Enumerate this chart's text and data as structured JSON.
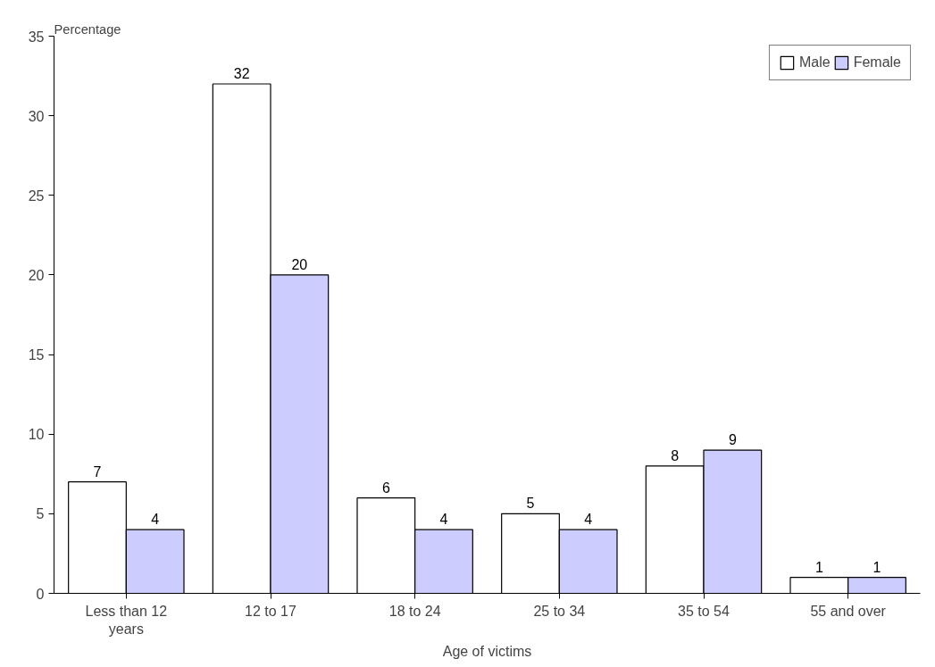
{
  "chart_data": {
    "type": "bar",
    "ylabel": "Percentage",
    "xlabel": "Age of victims",
    "categories": [
      "Less than 12\nyears",
      "12 to 17",
      "18 to 24",
      "25 to 34",
      "35 to 54",
      "55 and over"
    ],
    "series": [
      {
        "name": "Male",
        "color": "#ffffff",
        "values": [
          7,
          32,
          6,
          5,
          8,
          1
        ]
      },
      {
        "name": "Female",
        "color": "#ccccff",
        "values": [
          4,
          20,
          4,
          4,
          9,
          1
        ]
      }
    ],
    "ylim": [
      0,
      35
    ],
    "yticks": [
      0,
      5,
      10,
      15,
      20,
      25,
      30,
      35
    ],
    "grid": false,
    "legend": "top right",
    "data_labels": true
  }
}
